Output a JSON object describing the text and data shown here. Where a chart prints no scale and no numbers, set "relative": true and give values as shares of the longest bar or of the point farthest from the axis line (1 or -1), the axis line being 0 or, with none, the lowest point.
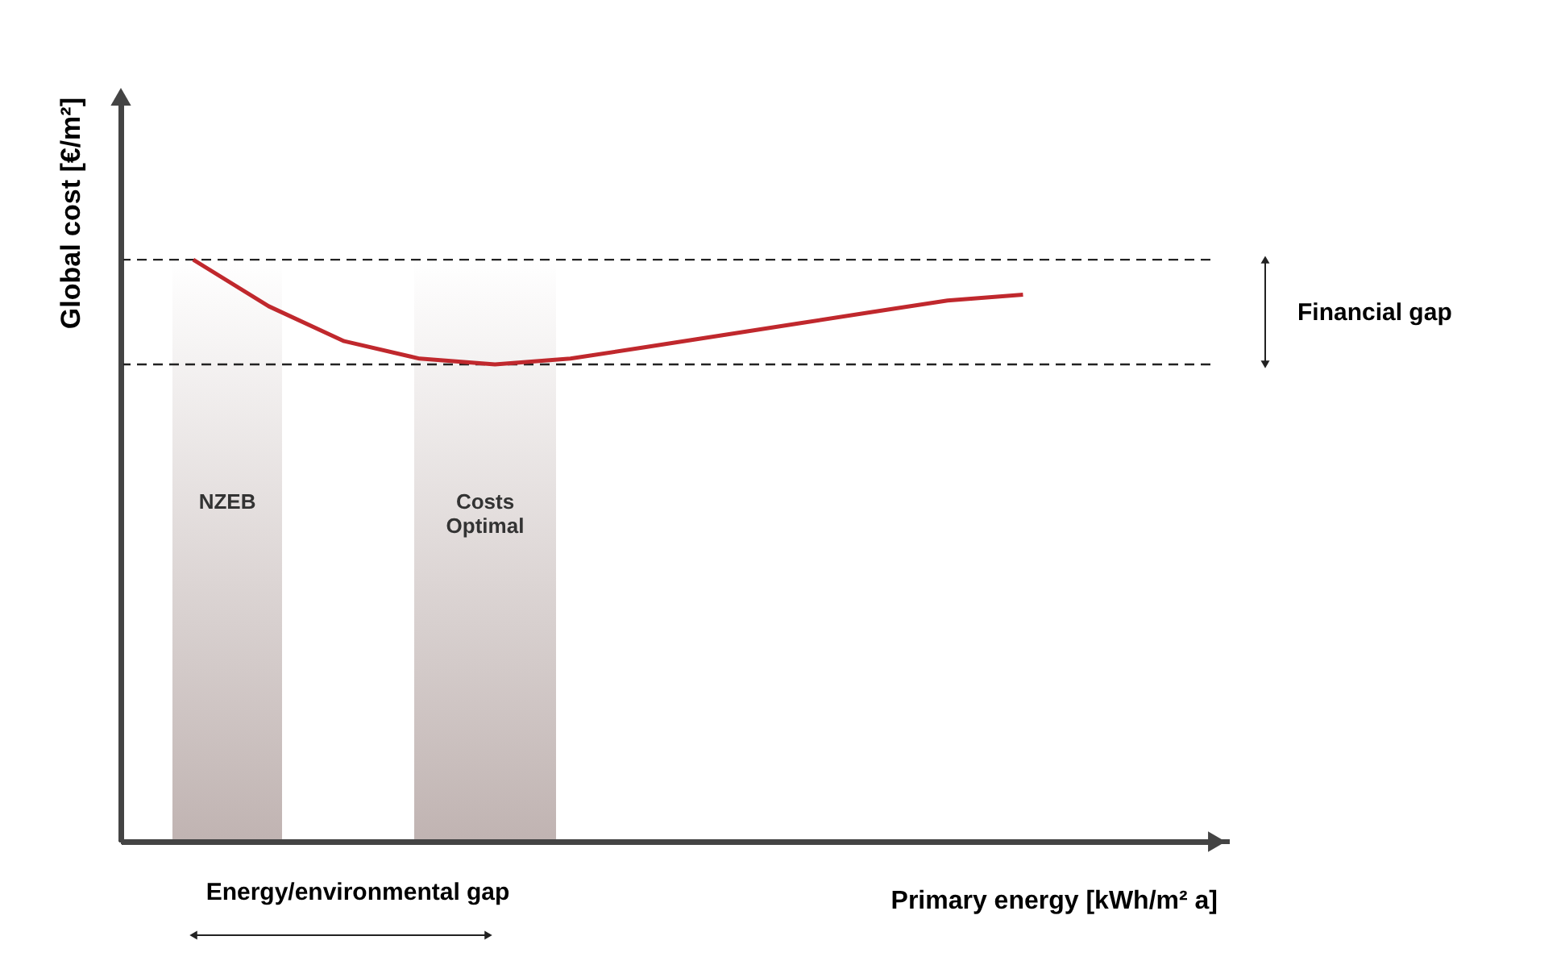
{
  "chart_data": {
    "type": "line",
    "relative": true,
    "xlabel": "Primary energy [kWh/m² a]",
    "ylabel": "Global cost [€/m²]",
    "marker": "none",
    "line_style": "solid",
    "categories": [
      null,
      null,
      null,
      null,
      null,
      null,
      null,
      null,
      null,
      null,
      null,
      null
    ],
    "series": [
      {
        "color": "#c0282d",
        "values": [
          1.0,
          0.92,
          0.86,
          0.83,
          0.82,
          0.83,
          0.85,
          0.87,
          0.89,
          0.91,
          0.93,
          0.94
        ]
      }
    ],
    "ref_lines": [
      {
        "axis": "y",
        "value": 1.0,
        "color": "#222222",
        "line_style": "dashed"
      },
      {
        "axis": "y",
        "value": 0.82,
        "color": "#222222",
        "line_style": "dashed"
      }
    ],
    "annotations": [
      "Financial gap",
      "Energy/environmental gap",
      "NZEB",
      "Costs Optimal"
    ]
  }
}
